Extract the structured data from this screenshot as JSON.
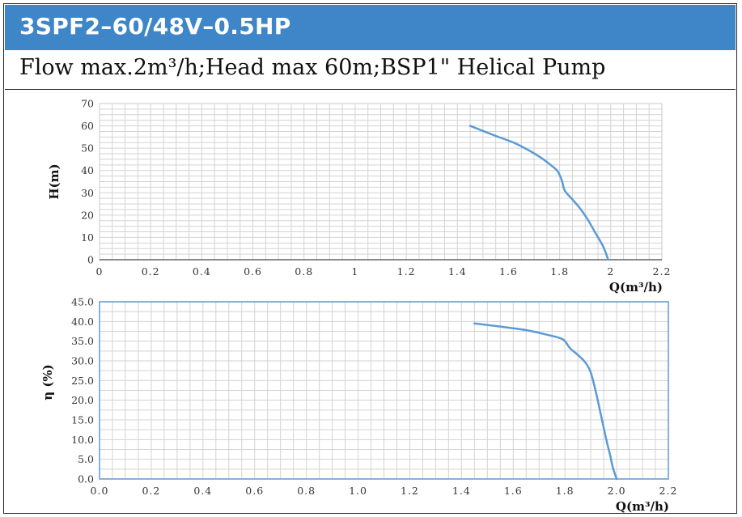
{
  "header": {
    "title": "3SPF2–60/48V–0.5HP"
  },
  "subtitle": "Flow max.2m³/h;Head max 60m;BSP1\" Helical Pump",
  "colors": {
    "header_bg": "#3f86c8",
    "curve": "#5b9bd5",
    "grid": "#d3d3d3"
  },
  "chart_data": [
    {
      "type": "line",
      "xlabel": "Q(m³/h)",
      "ylabel": "H(m)",
      "xlim": [
        0,
        2.2
      ],
      "ylim": [
        0,
        70
      ],
      "x_ticks": [
        "0",
        "0.2",
        "0.4",
        "0.6",
        "0.8",
        "1",
        "1.2",
        "1.4",
        "1.6",
        "1.8",
        "2",
        "2.2"
      ],
      "y_ticks": [
        "0",
        "10",
        "20",
        "30",
        "40",
        "50",
        "60",
        "70"
      ],
      "grid": true,
      "series": [
        {
          "x": [
            1.45,
            1.55,
            1.62,
            1.68,
            1.73,
            1.77,
            1.79,
            1.8,
            1.81,
            1.82,
            1.85,
            1.88,
            1.91,
            1.94,
            1.97,
            1.99
          ],
          "y": [
            60,
            55.5,
            52.5,
            49,
            45.5,
            42,
            40,
            38,
            35,
            31,
            27,
            23,
            18,
            12,
            6,
            0
          ]
        }
      ]
    },
    {
      "type": "line",
      "xlabel": "Q(m³/h)",
      "ylabel": "η (%)",
      "xlim": [
        0,
        2.2
      ],
      "ylim": [
        0,
        45
      ],
      "x_ticks": [
        "0.0",
        "0.2",
        "0.4",
        "0.6",
        "0.8",
        "1.0",
        "1.2",
        "1.4",
        "1.6",
        "1.8",
        "2.0",
        "2.2"
      ],
      "y_ticks": [
        "0.0",
        "5.0",
        "10.0",
        "15.0",
        "20.0",
        "25.0",
        "30.0",
        "35.0",
        "40.0",
        "45.0"
      ],
      "grid": true,
      "series": [
        {
          "x": [
            1.45,
            1.55,
            1.65,
            1.72,
            1.78,
            1.8,
            1.82,
            1.85,
            1.88,
            1.9,
            1.92,
            1.94,
            1.96,
            1.975,
            1.985,
            2.0
          ],
          "y": [
            39.5,
            38.7,
            37.8,
            36.8,
            35.8,
            35.0,
            33.2,
            31.5,
            29.5,
            27,
            22,
            16,
            10,
            6,
            3,
            0
          ]
        }
      ]
    }
  ]
}
